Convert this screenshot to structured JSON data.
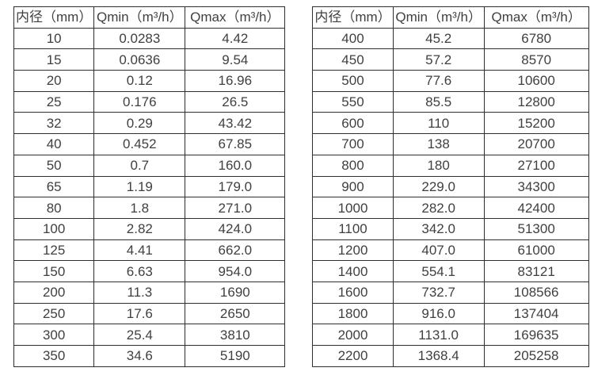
{
  "page": {
    "background_color": "#ffffff",
    "border_color": "#2f2f2f",
    "text_color": "#404040"
  },
  "tables": [
    {
      "name": "flow-spec-table-small-diameters",
      "headers": [
        "内径（mm）",
        "Qmin（m³/h）",
        "Qmax（m³/h）"
      ],
      "rows": [
        [
          "10",
          "0.0283",
          "4.42"
        ],
        [
          "15",
          "0.0636",
          "9.54"
        ],
        [
          "20",
          "0.12",
          "16.96"
        ],
        [
          "25",
          "0.176",
          "26.5"
        ],
        [
          "32",
          "0.29",
          "43.42"
        ],
        [
          "40",
          "0.452",
          "67.85"
        ],
        [
          "50",
          "0.7",
          "160.0"
        ],
        [
          "65",
          "1.19",
          "179.0"
        ],
        [
          "80",
          "1.8",
          "271.0"
        ],
        [
          "100",
          "2.82",
          "424.0"
        ],
        [
          "125",
          "4.41",
          "662.0"
        ],
        [
          "150",
          "6.63",
          "954.0"
        ],
        [
          "200",
          "11.3",
          "1690"
        ],
        [
          "250",
          "17.6",
          "2650"
        ],
        [
          "300",
          "25.4",
          "3810"
        ],
        [
          "350",
          "34.6",
          "5190"
        ]
      ]
    },
    {
      "name": "flow-spec-table-large-diameters",
      "headers": [
        "内径（mm）",
        "Qmin（m³/h）",
        "Qmax（m³/h）"
      ],
      "rows": [
        [
          "400",
          "45.2",
          "6780"
        ],
        [
          "450",
          "57.2",
          "8570"
        ],
        [
          "500",
          "77.6",
          "10600"
        ],
        [
          "550",
          "85.5",
          "12800"
        ],
        [
          "600",
          "110",
          "15200"
        ],
        [
          "700",
          "138",
          "20700"
        ],
        [
          "800",
          "180",
          "27100"
        ],
        [
          "900",
          "229.0",
          "34300"
        ],
        [
          "1000",
          "282.0",
          "42400"
        ],
        [
          "1100",
          "342.0",
          "51300"
        ],
        [
          "1200",
          "407.0",
          "61000"
        ],
        [
          "1400",
          "554.1",
          "83121"
        ],
        [
          "1600",
          "732.7",
          "108566"
        ],
        [
          "1800",
          "916.0",
          "137404"
        ],
        [
          "2000",
          "1131.0",
          "169635"
        ],
        [
          "2200",
          "1368.4",
          "205258"
        ]
      ]
    }
  ]
}
